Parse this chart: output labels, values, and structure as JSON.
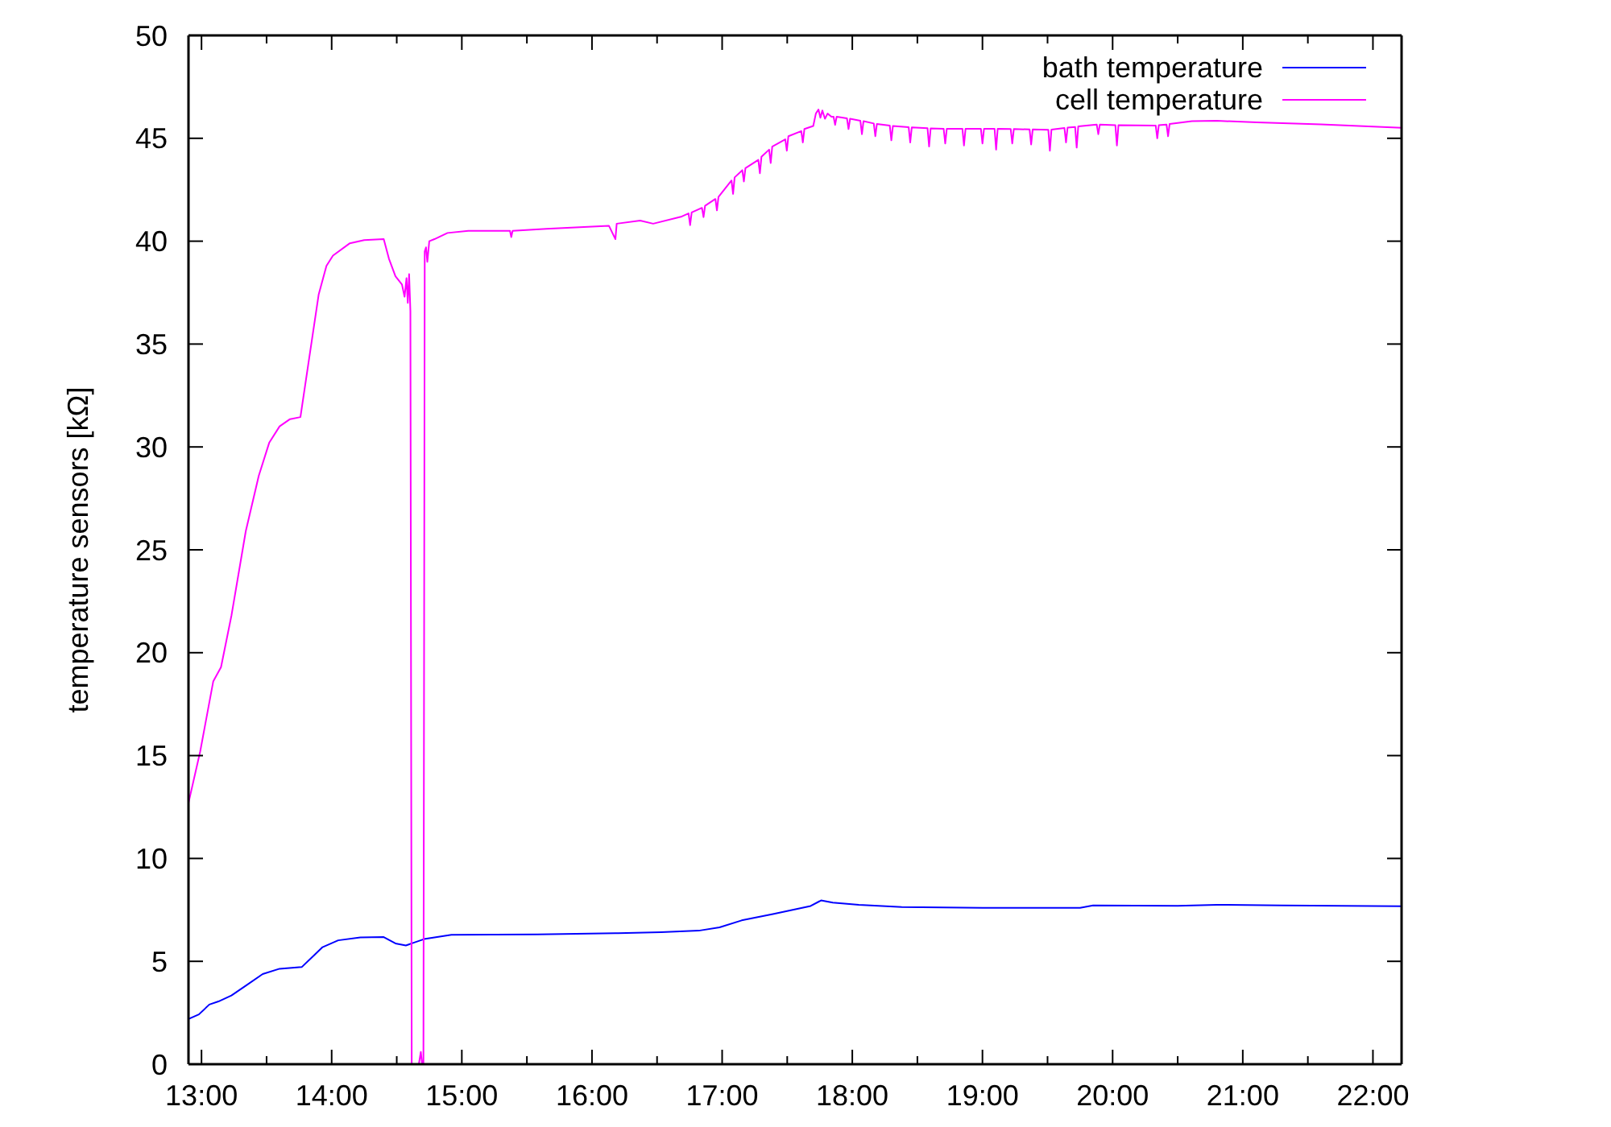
{
  "chart_data": {
    "type": "line",
    "ylabel": "temperature sensors [kΩ]",
    "xlim": [
      12.9,
      22.22
    ],
    "xticks": [
      {
        "value": 13,
        "label": "13:00"
      },
      {
        "value": 13.5,
        "label": null
      },
      {
        "value": 14,
        "label": "14:00"
      },
      {
        "value": 14.5,
        "label": null
      },
      {
        "value": 15,
        "label": "15:00"
      },
      {
        "value": 15.5,
        "label": null
      },
      {
        "value": 16,
        "label": "16:00"
      },
      {
        "value": 16.5,
        "label": null
      },
      {
        "value": 17,
        "label": "17:00"
      },
      {
        "value": 17.5,
        "label": null
      },
      {
        "value": 18,
        "label": "18:00"
      },
      {
        "value": 18.5,
        "label": null
      },
      {
        "value": 19,
        "label": "19:00"
      },
      {
        "value": 19.5,
        "label": null
      },
      {
        "value": 20,
        "label": "20:00"
      },
      {
        "value": 20.5,
        "label": null
      },
      {
        "value": 21,
        "label": "21:00"
      },
      {
        "value": 21.5,
        "label": null
      },
      {
        "value": 22,
        "label": "22:00"
      }
    ],
    "ylim": [
      0,
      50
    ],
    "yticks": [
      0,
      5,
      10,
      15,
      20,
      25,
      30,
      35,
      40,
      45,
      50
    ],
    "grid": false,
    "legend": "top right",
    "marker": "none",
    "line_style": "solid",
    "series": [
      {
        "name": "bath temperature",
        "color": "#0000ff",
        "x": [
          12.9,
          12.98,
          13.06,
          13.13,
          13.23,
          13.35,
          13.47,
          13.6,
          13.77,
          13.85,
          13.93,
          14.05,
          14.22,
          14.4,
          14.49,
          14.57,
          14.71,
          14.92,
          15.58,
          16.2,
          16.53,
          16.82,
          16.98,
          17.15,
          17.39,
          17.68,
          17.76,
          17.85,
          18.05,
          18.38,
          19.0,
          19.75,
          19.85,
          20.5,
          20.8,
          21.3,
          22.22
        ],
        "values": [
          2.2,
          2.42,
          2.9,
          3.05,
          3.34,
          3.86,
          4.38,
          4.64,
          4.72,
          5.2,
          5.69,
          6.02,
          6.16,
          6.18,
          5.87,
          5.77,
          6.08,
          6.29,
          6.31,
          6.37,
          6.42,
          6.49,
          6.65,
          6.99,
          7.3,
          7.69,
          7.96,
          7.85,
          7.75,
          7.64,
          7.6,
          7.6,
          7.72,
          7.7,
          7.75,
          7.72,
          7.68
        ]
      },
      {
        "name": "cell temperature",
        "color": "#ff00ff",
        "x": [
          12.9,
          12.99,
          13.09,
          13.15,
          13.23,
          13.34,
          13.44,
          13.52,
          13.6,
          13.68,
          13.76,
          13.82,
          13.9,
          13.96,
          14.01,
          14.14,
          14.25,
          14.4,
          14.44,
          14.49,
          14.54,
          14.56,
          14.575,
          14.585,
          14.595,
          14.605,
          14.615,
          14.67,
          14.685,
          14.695,
          14.705,
          14.715,
          14.725,
          14.735,
          14.75,
          14.79,
          14.89,
          15.05,
          15.37,
          15.38,
          15.39,
          15.65,
          16.13,
          16.18,
          16.19,
          16.37,
          16.47,
          16.69,
          16.742,
          16.754,
          16.766,
          16.845,
          16.857,
          16.869,
          16.948,
          16.96,
          16.972,
          17.072,
          17.084,
          17.096,
          17.155,
          17.167,
          17.179,
          17.278,
          17.29,
          17.302,
          17.361,
          17.373,
          17.385,
          17.485,
          17.497,
          17.509,
          17.608,
          17.62,
          17.632,
          17.7,
          17.72,
          17.74,
          17.755,
          17.77,
          17.79,
          17.81,
          17.84,
          17.856,
          17.868,
          17.88,
          17.959,
          17.971,
          17.983,
          18.062,
          18.074,
          18.086,
          18.165,
          18.177,
          18.189,
          18.288,
          18.3,
          18.312,
          18.433,
          18.445,
          18.457,
          18.578,
          18.59,
          18.602,
          18.702,
          18.714,
          18.726,
          18.846,
          18.858,
          18.87,
          18.988,
          19.0,
          19.012,
          19.093,
          19.105,
          19.117,
          19.217,
          19.229,
          19.241,
          19.362,
          19.374,
          19.386,
          19.506,
          19.518,
          19.53,
          19.63,
          19.642,
          19.654,
          19.712,
          19.724,
          19.736,
          19.878,
          19.89,
          19.902,
          20.021,
          20.033,
          20.045,
          20.331,
          20.343,
          20.355,
          20.414,
          20.426,
          20.438,
          20.61,
          20.8,
          21.11,
          21.6,
          22.22
        ],
        "values": [
          12.7,
          15.2,
          18.6,
          19.3,
          21.8,
          25.9,
          28.6,
          30.2,
          31.0,
          31.35,
          31.45,
          34.0,
          37.4,
          38.8,
          39.3,
          39.9,
          40.05,
          40.1,
          39.15,
          38.3,
          37.9,
          37.3,
          38.2,
          37.0,
          38.4,
          36.6,
          0,
          0,
          0.6,
          0,
          0,
          39.5,
          39.7,
          39.0,
          40.0,
          40.1,
          40.4,
          40.5,
          40.5,
          40.2,
          40.5,
          40.6,
          40.75,
          40.1,
          40.85,
          41.0,
          40.85,
          41.2,
          41.35,
          40.78,
          41.4,
          41.62,
          41.17,
          41.72,
          42.05,
          41.5,
          42.15,
          42.95,
          42.3,
          43.1,
          43.45,
          42.9,
          43.55,
          43.95,
          43.3,
          44.1,
          44.45,
          43.8,
          44.6,
          44.95,
          44.4,
          45.1,
          45.35,
          44.8,
          45.45,
          45.6,
          46.2,
          46.4,
          46.0,
          46.35,
          45.95,
          46.2,
          46.05,
          46.05,
          45.65,
          46.05,
          45.97,
          45.45,
          45.95,
          45.85,
          45.2,
          45.83,
          45.72,
          45.1,
          45.7,
          45.62,
          44.9,
          45.6,
          45.54,
          44.8,
          45.53,
          45.49,
          44.6,
          45.48,
          45.46,
          44.75,
          45.46,
          45.46,
          44.65,
          45.46,
          45.46,
          44.75,
          45.46,
          45.46,
          44.45,
          45.46,
          45.45,
          44.75,
          45.45,
          45.43,
          44.7,
          45.43,
          45.41,
          44.4,
          45.42,
          45.5,
          44.8,
          45.52,
          45.55,
          44.55,
          45.58,
          45.67,
          45.2,
          45.67,
          45.64,
          44.65,
          45.64,
          45.62,
          45.0,
          45.64,
          45.67,
          45.1,
          45.7,
          45.83,
          45.85,
          45.77,
          45.68,
          45.51
        ]
      }
    ]
  }
}
